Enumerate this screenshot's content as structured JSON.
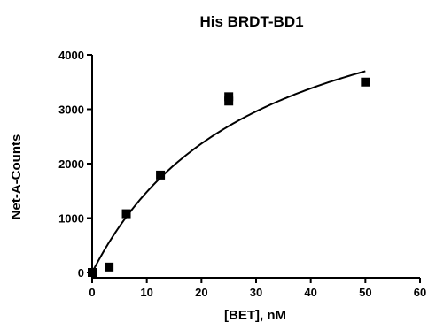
{
  "chart_data": {
    "type": "scatter",
    "title": "His BRDT-BD1",
    "xlabel": "[BET], nM",
    "ylabel": "Net-A-Counts",
    "xlim": [
      0,
      60
    ],
    "ylim": [
      0,
      4000
    ],
    "x_ticks": [
      "0",
      "10",
      "20",
      "30",
      "40",
      "50",
      "60"
    ],
    "y_ticks": [
      "0",
      "1000",
      "2000",
      "3000",
      "4000"
    ],
    "grid": false,
    "legend": "none",
    "marker_color": "#000000",
    "series": [
      {
        "points": [
          {
            "x": 0,
            "y": 0
          },
          {
            "x": 3.1,
            "y": 100
          },
          {
            "x": 6.25,
            "y": 1080
          },
          {
            "x": 12.5,
            "y": 1790
          },
          {
            "x": 25,
            "y": 3150
          },
          {
            "x": 25,
            "y": 3230
          },
          {
            "x": 50,
            "y": 3500
          }
        ]
      }
    ],
    "fit_curve": {
      "model": "one-site saturation binding",
      "bmax": 5920,
      "kd": 30,
      "x_range": [
        0,
        50
      ]
    }
  }
}
